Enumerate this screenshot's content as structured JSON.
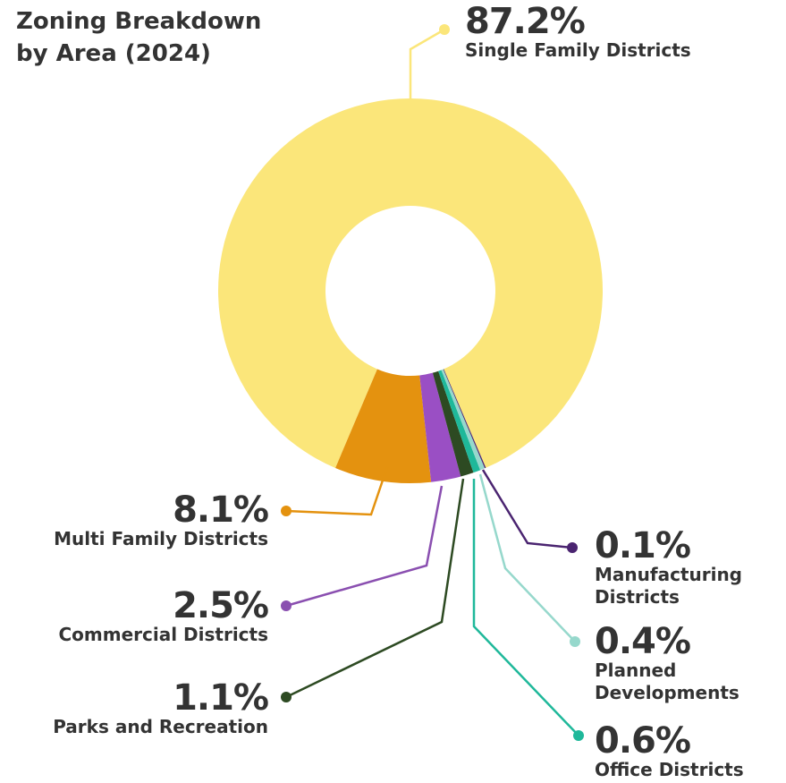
{
  "chart_data": {
    "type": "donut",
    "title": "Zoning Breakdown by Area (2024)",
    "categories": [
      "Single Family Districts",
      "Multi Family Districts",
      "Commercial Districts",
      "Parks and Recreation",
      "Office Districts",
      "Planned Developments",
      "Manufacturing Districts"
    ],
    "values": [
      87.2,
      8.1,
      2.5,
      1.1,
      0.6,
      0.4,
      0.1
    ],
    "value_labels": [
      "87.2%",
      "8.1%",
      "2.5%",
      "1.1%",
      "0.6%",
      "0.4%",
      "0.1%"
    ],
    "colors": [
      "#fbe67a",
      "#e4920f",
      "#9a4fc4",
      "#2d4a22",
      "#1fb89a",
      "#96d8cc",
      "#4a2470"
    ]
  }
}
